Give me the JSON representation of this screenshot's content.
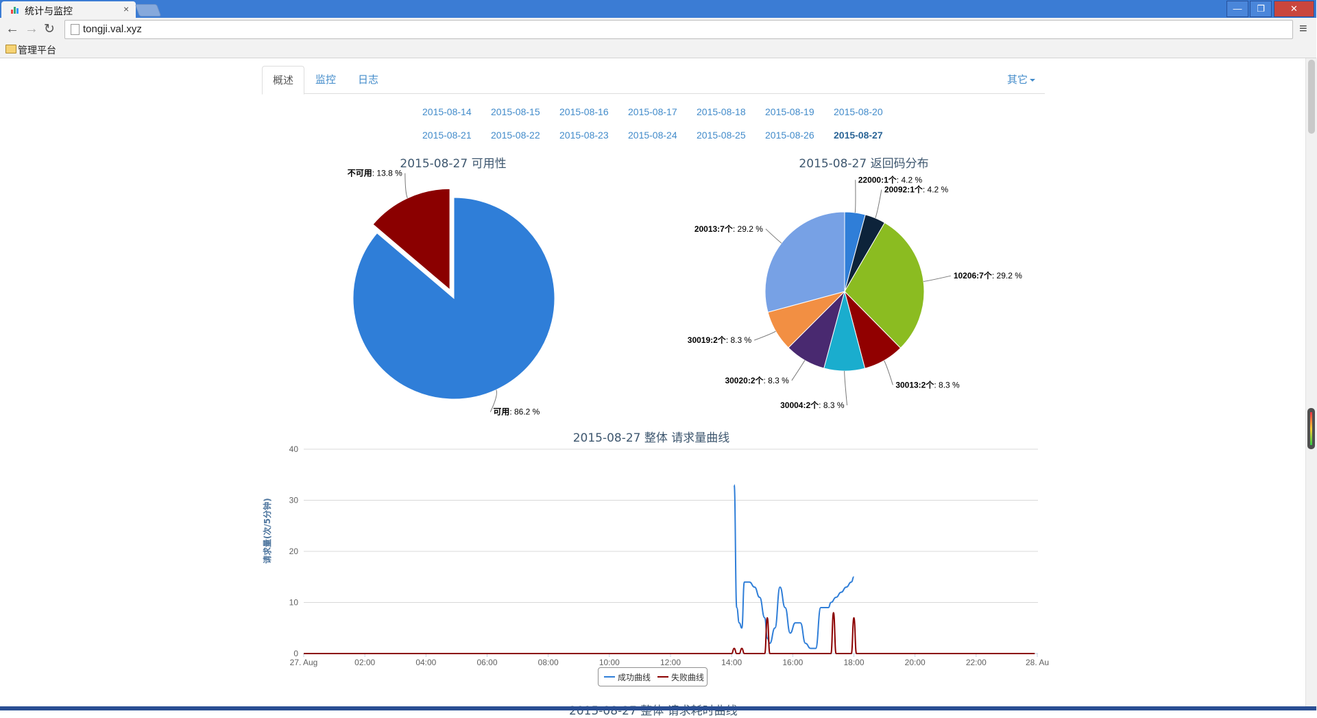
{
  "browser": {
    "tab_title": "统计与监控",
    "tab_close": "×",
    "url": "tongji.val.xyz",
    "bookmark": "管理平台",
    "window_buttons": {
      "minimize": "—",
      "maximize": "❐",
      "close": "✕"
    },
    "nav": {
      "back": "←",
      "forward": "→",
      "reload": "↻",
      "menu": "≡"
    }
  },
  "nav_tabs": [
    {
      "label": "概述",
      "active": true
    },
    {
      "label": "监控",
      "active": false
    },
    {
      "label": "日志",
      "active": false
    }
  ],
  "nav_other": "其它",
  "dates": {
    "row1": [
      "2015-08-14",
      "2015-08-15",
      "2015-08-16",
      "2015-08-17",
      "2015-08-18",
      "2015-08-19",
      "2015-08-20"
    ],
    "row2": [
      "2015-08-21",
      "2015-08-22",
      "2015-08-23",
      "2015-08-24",
      "2015-08-25",
      "2015-08-26",
      "2015-08-27"
    ],
    "active": "2015-08-27"
  },
  "next_title": "2015-08-27 整体 请求耗时曲线",
  "chart_data": [
    {
      "type": "pie",
      "title": "2015-08-27 可用性",
      "slices": [
        {
          "name": "可用",
          "percent": 86.2,
          "color": "#2f7ed8"
        },
        {
          "name": "不可用",
          "percent": 13.8,
          "color": "#8b0000",
          "sliced": true
        }
      ],
      "label_suffix": ": ",
      "percent_suffix": " %"
    },
    {
      "type": "pie",
      "title": "2015-08-27 返回码分布",
      "slices": [
        {
          "name": "22000:1个",
          "percent": 4.2,
          "color": "#2f7ed8"
        },
        {
          "name": "20092:1个",
          "percent": 4.2,
          "color": "#0d233a"
        },
        {
          "name": "10206:7个",
          "percent": 29.2,
          "color": "#8bbc21"
        },
        {
          "name": "30013:2个",
          "percent": 8.3,
          "color": "#910000"
        },
        {
          "name": "30004:2个",
          "percent": 8.3,
          "color": "#1aadce"
        },
        {
          "name": "30020:2个",
          "percent": 8.3,
          "color": "#492970"
        },
        {
          "name": "30019:2个",
          "percent": 8.3,
          "color": "#f28f43"
        },
        {
          "name": "20013:7个",
          "percent": 29.2,
          "color": "#77a1e5"
        }
      ],
      "label_suffix": ": ",
      "percent_suffix": " %"
    },
    {
      "type": "line",
      "title": "2015-08-27 整体 请求量曲线",
      "ylabel": "请求量(次/5分钟)",
      "ylim": [
        0,
        40
      ],
      "yticks": [
        0,
        10,
        20,
        30,
        40
      ],
      "xlim": [
        "2015-08-27 00:00",
        "2015-08-28 00:00"
      ],
      "xtick_labels": [
        "27. Aug",
        "02:00",
        "04:00",
        "06:00",
        "08:00",
        "10:00",
        "12:00",
        "14:00",
        "16:00",
        "18:00",
        "20:00",
        "22:00",
        "28. Au"
      ],
      "grid": true,
      "legend": "bottom-center",
      "series": [
        {
          "name": "成功曲线",
          "color": "#2f7ed8",
          "points": [
            [
              "14:05",
              33
            ],
            [
              "14:10",
              9
            ],
            [
              "14:15",
              6
            ],
            [
              "14:20",
              5
            ],
            [
              "14:25",
              14
            ],
            [
              "14:35",
              14
            ],
            [
              "14:45",
              13
            ],
            [
              "14:55",
              11
            ],
            [
              "15:05",
              7
            ],
            [
              "15:10",
              3
            ],
            [
              "15:15",
              2
            ],
            [
              "15:25",
              5
            ],
            [
              "15:35",
              13
            ],
            [
              "15:45",
              9
            ],
            [
              "15:55",
              4
            ],
            [
              "16:05",
              6
            ],
            [
              "16:15",
              6
            ],
            [
              "16:25",
              2
            ],
            [
              "16:35",
              1
            ],
            [
              "16:45",
              1
            ],
            [
              "16:55",
              9
            ],
            [
              "17:05",
              9
            ],
            [
              "17:10",
              9
            ],
            [
              "17:15",
              10
            ],
            [
              "17:25",
              11
            ],
            [
              "17:35",
              12
            ],
            [
              "17:45",
              13
            ],
            [
              "17:55",
              14
            ],
            [
              "18:00",
              15
            ]
          ]
        },
        {
          "name": "失败曲线",
          "color": "#8b0000",
          "points": [
            [
              "00:00",
              0
            ],
            [
              "14:00",
              0
            ],
            [
              "14:05",
              1
            ],
            [
              "14:10",
              0
            ],
            [
              "14:15",
              0
            ],
            [
              "14:20",
              1
            ],
            [
              "14:25",
              0
            ],
            [
              "15:05",
              0
            ],
            [
              "15:10",
              7
            ],
            [
              "15:15",
              0
            ],
            [
              "17:15",
              0
            ],
            [
              "17:20",
              8
            ],
            [
              "17:25",
              0
            ],
            [
              "17:55",
              0
            ],
            [
              "18:00",
              7
            ],
            [
              "18:05",
              0
            ],
            [
              "23:55",
              0
            ]
          ]
        }
      ]
    }
  ]
}
